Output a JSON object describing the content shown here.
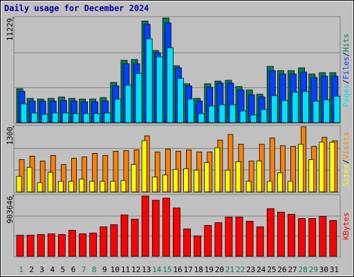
{
  "title": "Daily usage for December 2024",
  "legend_separator": "/",
  "chart_data": [
    {
      "type": "bar",
      "ylim": [
        0,
        11229
      ],
      "yticks": [
        11229
      ],
      "grid": true,
      "series": [
        {
          "name": "Hits",
          "color": "#00805c",
          "values": [
            3640,
            2600,
            2530,
            2600,
            2750,
            2600,
            2530,
            2530,
            2680,
            4310,
            6690,
            6770,
            10900,
            7740,
            11229,
            6100,
            4170,
            2600,
            4170,
            4460,
            4540,
            3870,
            3500,
            3050,
            6030,
            5580,
            5580,
            5880,
            5210,
            5360,
            5360
          ]
        },
        {
          "name": "Files",
          "color": "#0040ff",
          "values": [
            3350,
            2310,
            2310,
            2310,
            2380,
            2310,
            2230,
            2230,
            2310,
            3940,
            6320,
            6320,
            10560,
            7510,
            10710,
            5880,
            3940,
            2310,
            3790,
            4240,
            4240,
            3500,
            2980,
            2750,
            5580,
            5210,
            5210,
            5430,
            4840,
            4980,
            4980
          ]
        },
        {
          "name": "Pages",
          "color": "#00e0ff",
          "values": [
            2010,
            1040,
            890,
            1040,
            1040,
            970,
            970,
            970,
            1040,
            2530,
            4020,
            5280,
            9000,
            7070,
            8040,
            4760,
            2530,
            970,
            1790,
            1930,
            1930,
            1260,
            820,
            1410,
            2900,
            2380,
            3270,
            3350,
            2310,
            2460,
            2830
          ]
        }
      ]
    },
    {
      "type": "bar",
      "ylim": [
        0,
        1300
      ],
      "yticks": [
        1300
      ],
      "grid": true,
      "series": [
        {
          "name": "Visits",
          "color": "#ff8000",
          "values": [
            643,
            713,
            615,
            727,
            545,
            671,
            699,
            769,
            727,
            811,
            825,
            839,
            1118,
            797,
            853,
            811,
            839,
            797,
            797,
            1034,
            1146,
            951,
            615,
            951,
            1076,
            923,
            909,
            1300,
            909,
            1090,
            1020
          ]
        },
        {
          "name": "Sites",
          "color": "#ffff00",
          "values": [
            308,
            489,
            182,
            391,
            210,
            210,
            252,
            210,
            210,
            210,
            224,
            545,
            1021,
            294,
            336,
            447,
            461,
            433,
            587,
            881,
            433,
            601,
            210,
            615,
            210,
            377,
            210,
            951,
            643,
            993,
            993
          ]
        }
      ]
    },
    {
      "type": "bar",
      "ylim": [
        0,
        903646
      ],
      "yticks": [
        903646
      ],
      "grid": true,
      "categories": [
        "1",
        "2",
        "3",
        "4",
        "5",
        "6",
        "7",
        "8",
        "9",
        "10",
        "11",
        "12",
        "13",
        "14",
        "15",
        "16",
        "17",
        "18",
        "19",
        "20",
        "21",
        "22",
        "23",
        "24",
        "25",
        "26",
        "27",
        "28",
        "29",
        "30",
        "31"
      ],
      "category_colors": [
        "#00805c",
        "#000000",
        "#000000",
        "#000000",
        "#000000",
        "#000000",
        "#00805c",
        "#00805c",
        "#000000",
        "#000000",
        "#000000",
        "#000000",
        "#000000",
        "#00805c",
        "#00805c",
        "#000000",
        "#000000",
        "#000000",
        "#000000",
        "#000000",
        "#00805c",
        "#00805c",
        "#000000",
        "#000000",
        "#000000",
        "#000000",
        "#000000",
        "#00805c",
        "#00805c",
        "#000000",
        "#000000"
      ],
      "series": [
        {
          "name": "KBytes",
          "color": "#ff0000",
          "values": [
            315000,
            315000,
            326000,
            336000,
            326000,
            389000,
            336000,
            347000,
            441000,
            473000,
            620000,
            557000,
            903646,
            841000,
            872000,
            725000,
            410000,
            305000,
            462000,
            504000,
            588000,
            588000,
            525000,
            441000,
            714000,
            662000,
            630000,
            567000,
            567000,
            599000,
            536000
          ]
        }
      ]
    }
  ]
}
